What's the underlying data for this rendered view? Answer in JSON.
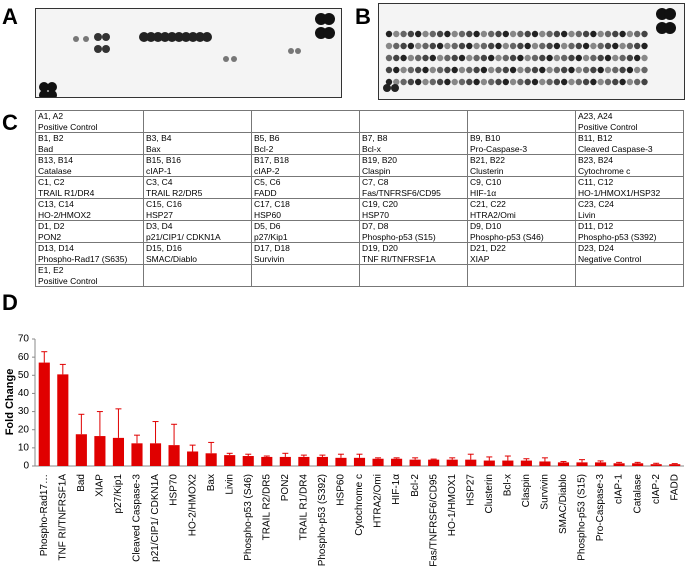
{
  "panel_labels": [
    "A",
    "B",
    "C",
    "D"
  ],
  "table": {
    "rows": [
      [
        {
          "pos": "A1, A2",
          "name": "Positive Control"
        },
        null,
        null,
        null,
        null,
        {
          "pos": "A23, A24",
          "name": "Positive Control"
        }
      ],
      [
        {
          "pos": "B1, B2",
          "name": "Bad"
        },
        {
          "pos": "B3, B4",
          "name": "Bax"
        },
        {
          "pos": "B5, B6",
          "name": "Bcl-2"
        },
        {
          "pos": "B7, B8",
          "name": "Bcl-x"
        },
        {
          "pos": "B9, B10",
          "name": "Pro-Caspase-3"
        },
        {
          "pos": "B11, B12",
          "name": "Cleaved Caspase-3"
        }
      ],
      [
        {
          "pos": "B13, B14",
          "name": "Catalase"
        },
        {
          "pos": "B15, B16",
          "name": "cIAP-1"
        },
        {
          "pos": "B17, B18",
          "name": "cIAP-2"
        },
        {
          "pos": "B19, B20",
          "name": "Claspin"
        },
        {
          "pos": "B21, B22",
          "name": "Clusterin"
        },
        {
          "pos": "B23, B24",
          "name": "Cytochrome c"
        }
      ],
      [
        {
          "pos": "C1, C2",
          "name": "TRAIL R1/DR4"
        },
        {
          "pos": "C3, C4",
          "name": "TRAIL R2/DR5"
        },
        {
          "pos": "C5, C6",
          "name": "FADD"
        },
        {
          "pos": "C7, C8",
          "name": "Fas/TNFRSF6/CD95"
        },
        {
          "pos": "C9, C10",
          "name": "HIF-1α"
        },
        {
          "pos": "C11, C12",
          "name": "HO-1/HMOX1/HSP32"
        }
      ],
      [
        {
          "pos": "C13, C14",
          "name": "HO-2/HMOX2"
        },
        {
          "pos": "C15, C16",
          "name": "HSP27"
        },
        {
          "pos": "C17, C18",
          "name": "HSP60"
        },
        {
          "pos": "C19, C20",
          "name": "HSP70"
        },
        {
          "pos": "C21, C22",
          "name": "HTRA2/Omi"
        },
        {
          "pos": "C23, C24",
          "name": "Livin"
        }
      ],
      [
        {
          "pos": "D1, D2",
          "name": "PON2"
        },
        {
          "pos": "D3, D4",
          "name": "p21/CIP1/ CDKN1A"
        },
        {
          "pos": "D5, D6",
          "name": "p27/Kip1"
        },
        {
          "pos": "D7, D8",
          "name": "Phospho-p53 (S15)"
        },
        {
          "pos": "D9, D10",
          "name": "Phospho-p53 (S46)"
        },
        {
          "pos": "D11, D12",
          "name": "Phospho-p53 (S392)"
        }
      ],
      [
        {
          "pos": "D13, D14",
          "name": "Phospho-Rad17 (S635)"
        },
        {
          "pos": "D15, D16",
          "name": "SMAC/Diablo"
        },
        {
          "pos": "D17, D18",
          "name": "Survivin"
        },
        {
          "pos": "D19, D20",
          "name": "TNF RI/TNFRSF1A"
        },
        {
          "pos": "D21, D22",
          "name": "XIAP"
        },
        {
          "pos": "D23, D24",
          "name": "Negative Control"
        }
      ],
      [
        {
          "pos": "E1, E2",
          "name": "Positive Control"
        },
        null,
        null,
        null,
        null,
        null
      ]
    ]
  },
  "chart_data": {
    "type": "bar",
    "ylabel": "Fold Change",
    "color": "#e00000",
    "categories": [
      "Phospho-Rad17…",
      "TNF RI/TNFRSF1A",
      "Bad",
      "XIAP",
      "p27/Kip1",
      "Cleaved Caspase-3",
      "p21/CIP1/ CDKN1A",
      "HSP70",
      "HO-2/HMOX2",
      "Bax",
      "Livin",
      "Phospho-p53 (S46)",
      "TRAIL R2/DR5",
      "PON2",
      "TRAIL R1/DR4",
      "Phospho-p53 (S392)",
      "HSP60",
      "Cytochrome c",
      "HTRA2/Omi",
      "HIF-1α",
      "Bcl-2",
      "Fas/TNFRSF6/CD95",
      "HO-1/HMOX1",
      "HSP27",
      "Clusterin",
      "Bcl-x",
      "Claspin",
      "Survivin",
      "SMAC/Diablo",
      "Phospho-p53 (S15)",
      "Pro-Caspase-3",
      "cIAP-1",
      "Catalase",
      "cIAP-2",
      "FADD"
    ],
    "values": [
      57,
      50.5,
      17.5,
      16.5,
      15.5,
      12.5,
      12.5,
      11.5,
      8,
      7,
      6,
      5.5,
      5,
      5,
      5,
      5,
      4.5,
      4.5,
      4,
      4,
      3.5,
      3.5,
      3.5,
      3.5,
      3,
      3,
      3,
      2.5,
      2,
      2,
      2,
      1.5,
      1.5,
      1,
      1
    ],
    "errors": [
      6,
      5.5,
      11,
      13.5,
      16,
      4.5,
      12,
      11.5,
      3.5,
      6,
      1,
      1,
      0.5,
      2,
      1,
      1,
      2,
      2,
      0.5,
      0.5,
      1,
      0.3,
      1,
      3,
      2,
      2.5,
      1,
      2,
      0.5,
      1.5,
      0.8,
      0.5,
      0.5,
      0.5,
      0.3
    ],
    "ylim": [
      0,
      70
    ],
    "yticks": [
      0,
      10,
      20,
      30,
      40,
      50,
      60,
      70
    ]
  }
}
